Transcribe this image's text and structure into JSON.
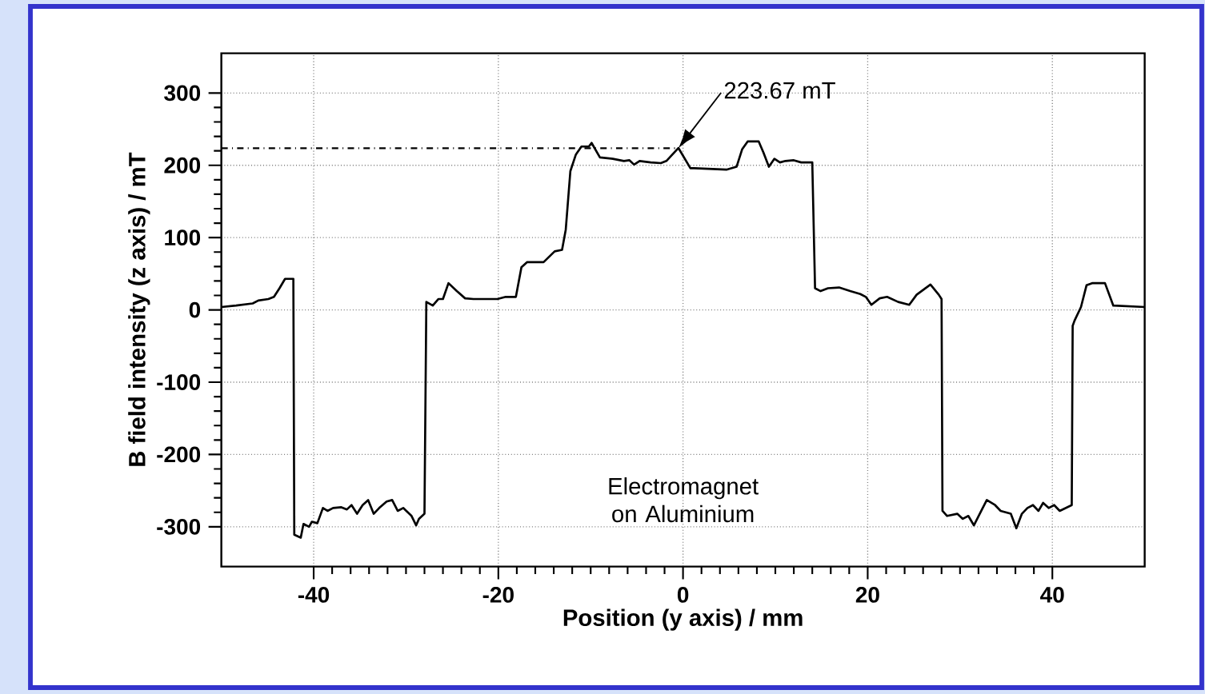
{
  "chart_data": {
    "type": "line",
    "xlabel": "Position (y axis) / mm",
    "ylabel": "B field intensity (z axis) / mT",
    "xlim": [
      -50,
      50
    ],
    "ylim": [
      -355,
      355
    ],
    "xticks": [
      -40,
      -20,
      0,
      20,
      40
    ],
    "yticks": [
      -300,
      -200,
      -100,
      0,
      100,
      200,
      300
    ],
    "grid": true,
    "marker": "none",
    "line_style": "solid",
    "ref_lines": [
      {
        "axis": "y",
        "value": 223.67,
        "line_style": "dashdot",
        "color": "#000000"
      }
    ],
    "annotations": [
      {
        "text": "223.67 mT",
        "x": -0.5,
        "y": 223.67
      },
      "Electromagnet on Aluminium"
    ],
    "series": [
      {
        "color": "#000000",
        "x": [
          -50,
          -48.4,
          -46.6,
          -46,
          -44.9,
          -44.3,
          -43.7,
          -43.1,
          -42.2,
          -42.1,
          -41.4,
          -41.1,
          -40.5,
          -40.2,
          -39.6,
          -39,
          -38.5,
          -37.9,
          -37,
          -36.4,
          -35.9,
          -35.3,
          -34.7,
          -34.1,
          -33.5,
          -32.9,
          -32.1,
          -31.5,
          -30.9,
          -30.3,
          -29.4,
          -28.9,
          -28.6,
          -28,
          -27.8,
          -27.1,
          -26.5,
          -26,
          -25.4,
          -24.5,
          -23.6,
          -22.7,
          -20.1,
          -19.2,
          -18.1,
          -17.5,
          -16.9,
          -15.1,
          -13.9,
          -13.1,
          -12.7,
          -12.2,
          -11.6,
          -11,
          -10.2,
          -9.9,
          -9,
          -7.6,
          -6.4,
          -5.8,
          -5.3,
          -4.7,
          -3.5,
          -2.4,
          -1.8,
          -0.5,
          0.8,
          1.2,
          4.7,
          5.8,
          6.4,
          7,
          8.2,
          8.7,
          9.3,
          9.9,
          10.5,
          11.1,
          12,
          12.8,
          14,
          14.3,
          14.9,
          15.7,
          16.9,
          18.1,
          19.2,
          19.8,
          20.4,
          21.3,
          22.1,
          23.3,
          24.5,
          25.3,
          26.8,
          27.7,
          28,
          28.1,
          28.6,
          29.7,
          30.3,
          30.9,
          31.5,
          32.3,
          32.9,
          33.8,
          34.4,
          35.5,
          36.1,
          36.7,
          37.3,
          37.9,
          38.5,
          39,
          39.6,
          40.2,
          40.8,
          42.1,
          42.2,
          42.4,
          43.1,
          43.7,
          44.3,
          45.7,
          46.6,
          50
        ],
        "values": [
          4,
          6,
          9,
          13,
          15,
          18,
          30,
          43,
          43,
          -311,
          -315,
          -296,
          -300,
          -293,
          -295,
          -274,
          -278,
          -274,
          -273,
          -276,
          -270,
          -282,
          -270,
          -263,
          -282,
          -274,
          -265,
          -263,
          -278,
          -274,
          -285,
          -298,
          -289,
          -282,
          11,
          6,
          15,
          15,
          37,
          26,
          16,
          15,
          15,
          18,
          18,
          59,
          66,
          66,
          81,
          83,
          111,
          192,
          215,
          226,
          226,
          231,
          211,
          209,
          206,
          207,
          201,
          206,
          204,
          203,
          206,
          224,
          196,
          196,
          194,
          198,
          222,
          233,
          233,
          218,
          198,
          209,
          204,
          206,
          207,
          204,
          204,
          30,
          26,
          30,
          31,
          26,
          22,
          18,
          7,
          16,
          18,
          11,
          7,
          21,
          35,
          21,
          15,
          -278,
          -285,
          -282,
          -289,
          -285,
          -298,
          -278,
          -263,
          -270,
          -278,
          -282,
          -302,
          -282,
          -274,
          -270,
          -278,
          -267,
          -274,
          -270,
          -278,
          -270,
          -22,
          -15,
          4,
          34,
          37,
          37,
          6,
          4
        ]
      }
    ]
  }
}
